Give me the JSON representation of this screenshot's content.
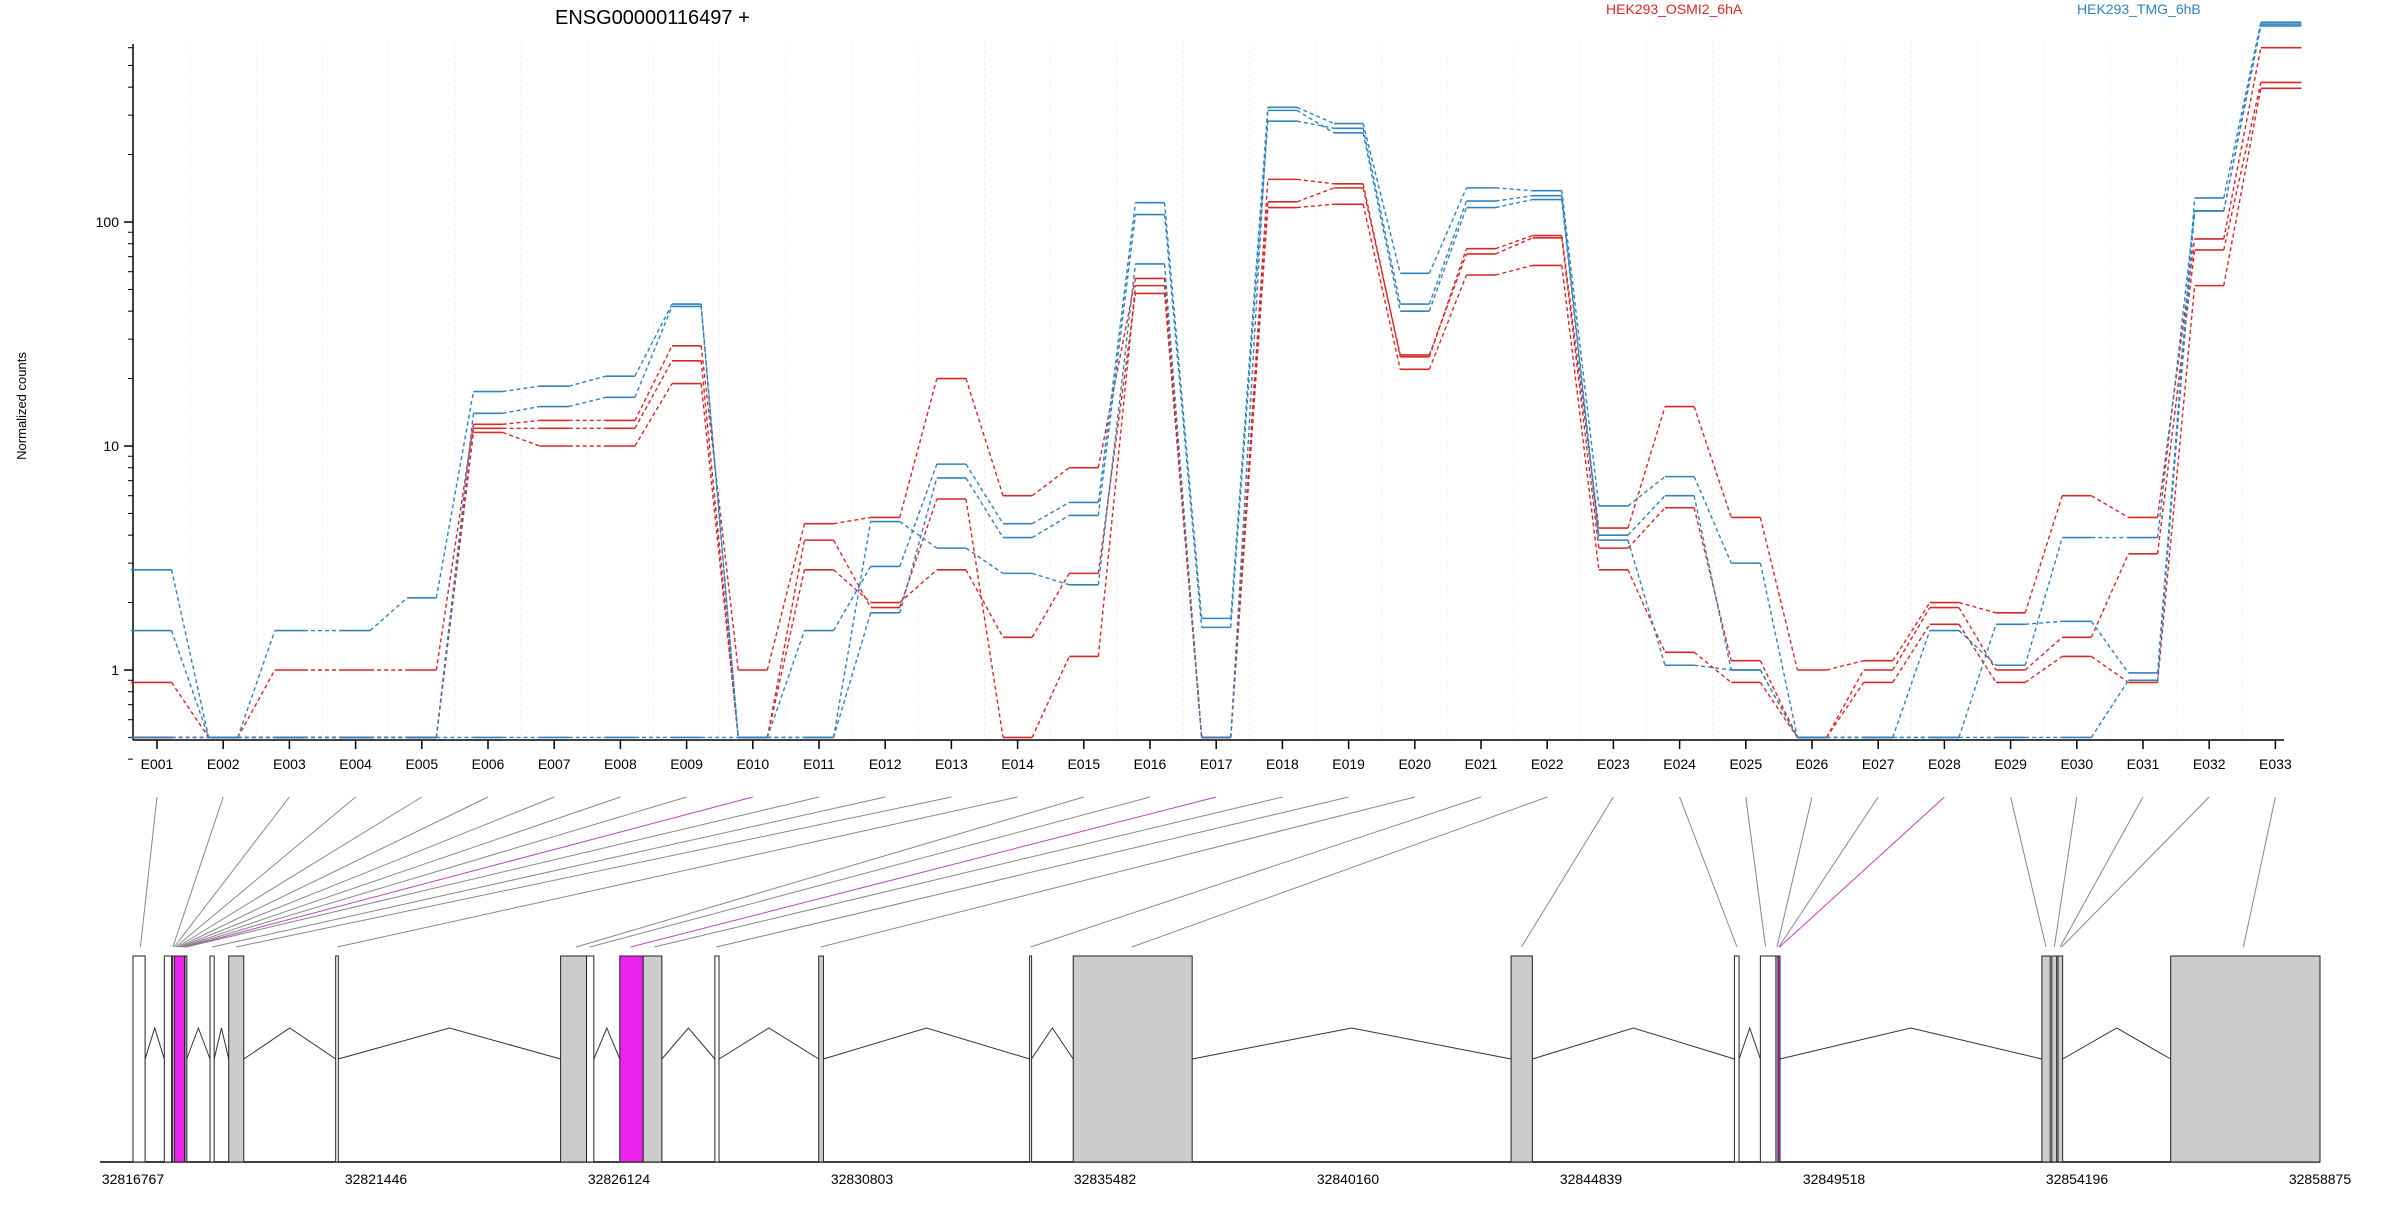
{
  "title": "ENSG00000116497 +",
  "ylabel": "Normalized counts",
  "colors": {
    "red": "#d62728",
    "blue": "#3182bd",
    "exon_fill": "#cccccc",
    "highlight": "#ee22ee",
    "grid": "#eeeeee",
    "axis": "#000000"
  },
  "legend": [
    {
      "name": "HEK293_OSMI2_6hA",
      "color": "#d62728"
    },
    {
      "name": "HEK293_TMG_6hB",
      "color": "#3182bd"
    }
  ],
  "chart_data": {
    "type": "line",
    "y_scale": "log",
    "y_ticks": [
      1,
      10,
      100
    ],
    "y_tick_labels": [
      "1",
      "10",
      "100"
    ],
    "ylim": [
      0.38,
      1000
    ],
    "categories": [
      "E001",
      "E002",
      "E003",
      "E004",
      "E005",
      "E006",
      "E007",
      "E008",
      "E009",
      "E010",
      "E011",
      "E012",
      "E013",
      "E014",
      "E015",
      "E016",
      "E017",
      "E018",
      "E019",
      "E020",
      "E021",
      "E022",
      "E023",
      "E024",
      "E025",
      "E026",
      "E027",
      "E028",
      "E029",
      "E030",
      "E031",
      "E032",
      "E033"
    ],
    "series": [
      {
        "group": "red",
        "values": [
          0.88,
          0.5,
          1.0,
          1.0,
          1.0,
          12.5,
          13.0,
          13.0,
          28,
          1.0,
          4.5,
          4.8,
          20,
          6.0,
          8.0,
          56,
          0.5,
          155,
          148,
          25.0,
          76,
          87,
          4.3,
          15.0,
          4.8,
          1.0,
          1.1,
          2.0,
          1.8,
          6.0,
          4.8,
          84,
          600
        ]
      },
      {
        "group": "red",
        "values": [
          0.5,
          0.5,
          0.5,
          0.5,
          0.5,
          11.5,
          10.0,
          10.0,
          19,
          0.5,
          2.8,
          2.0,
          2.8,
          1.4,
          2.7,
          48,
          0.5,
          116,
          120,
          22.0,
          58,
          64,
          2.8,
          1.2,
          0.88,
          0.5,
          0.88,
          1.6,
          0.88,
          1.15,
          0.88,
          52,
          395
        ]
      },
      {
        "group": "red",
        "values": [
          0.5,
          0.5,
          0.5,
          0.5,
          0.5,
          12.0,
          12.0,
          12.0,
          24,
          0.5,
          3.8,
          1.9,
          5.8,
          0.5,
          1.15,
          52,
          0.5,
          123,
          142,
          25.5,
          72,
          85,
          3.5,
          5.3,
          1.1,
          0.5,
          1.0,
          1.9,
          1.0,
          1.4,
          3.3,
          75,
          420
        ]
      },
      {
        "group": "blue",
        "values": [
          2.8,
          0.5,
          1.5,
          1.5,
          2.1,
          17.5,
          18.5,
          20.5,
          43,
          0.5,
          1.5,
          2.9,
          8.3,
          4.5,
          5.6,
          122,
          1.7,
          325,
          275,
          59,
          142,
          138,
          5.4,
          7.3,
          3.0,
          0.5,
          0.5,
          0.5,
          1.6,
          1.65,
          0.97,
          128,
          780
        ]
      },
      {
        "group": "blue",
        "values": [
          1.5,
          0.5,
          0.5,
          0.5,
          0.5,
          14.0,
          15.0,
          16.5,
          42,
          0.5,
          0.5,
          1.8,
          7.2,
          3.9,
          4.9,
          108,
          1.55,
          282,
          262,
          43,
          124,
          131,
          4.0,
          6.0,
          1.0,
          0.5,
          0.5,
          1.5,
          1.05,
          3.9,
          3.9,
          112,
          750
        ]
      },
      {
        "group": "blue",
        "values": [
          0.5,
          0.5,
          0.5,
          0.5,
          0.5,
          0.5,
          0.5,
          0.5,
          0.5,
          0.5,
          0.5,
          4.6,
          3.5,
          2.7,
          2.4,
          65,
          0.5,
          315,
          250,
          40,
          116,
          126,
          3.8,
          1.05,
          1.0,
          0.5,
          0.5,
          0.5,
          0.5,
          0.5,
          0.9,
          112,
          765
        ]
      }
    ],
    "gene_axis_ticks": [
      "32816767",
      "32821446",
      "32826124",
      "32830803",
      "32835482",
      "32840160",
      "32844839",
      "32849518",
      "32854196",
      "32858875"
    ],
    "genomic_range": [
      32816767,
      32858875
    ],
    "exons": [
      {
        "start": 32816767,
        "end": 32817000,
        "fill": "white"
      },
      {
        "start": 32817370,
        "end": 32817510,
        "fill": "white"
      },
      {
        "start": 32817525,
        "end": 32817560,
        "fill": "gray"
      },
      {
        "start": 32817565,
        "end": 32817760,
        "fill": "magenta"
      },
      {
        "start": 32817765,
        "end": 32817800,
        "fill": "gray"
      },
      {
        "start": 32818250,
        "end": 32818330,
        "fill": "white"
      },
      {
        "start": 32818610,
        "end": 32818900,
        "fill": "gray"
      },
      {
        "start": 32820670,
        "end": 32820720,
        "fill": "white"
      },
      {
        "start": 32825000,
        "end": 32825500,
        "fill": "gray"
      },
      {
        "start": 32825500,
        "end": 32825640,
        "fill": "white"
      },
      {
        "start": 32826140,
        "end": 32826590,
        "fill": "magenta"
      },
      {
        "start": 32826590,
        "end": 32826950,
        "fill": "gray"
      },
      {
        "start": 32827970,
        "end": 32828050,
        "fill": "white"
      },
      {
        "start": 32829970,
        "end": 32830060,
        "fill": "gray"
      },
      {
        "start": 32834030,
        "end": 32834065,
        "fill": "white"
      },
      {
        "start": 32834870,
        "end": 32837160,
        "fill": "gray"
      },
      {
        "start": 32843300,
        "end": 32843710,
        "fill": "gray"
      },
      {
        "start": 32847600,
        "end": 32847690,
        "fill": "white"
      },
      {
        "start": 32848100,
        "end": 32848400,
        "fill": "white"
      },
      {
        "start": 32848400,
        "end": 32848440,
        "fill": "gray"
      },
      {
        "start": 32848440,
        "end": 32848475,
        "fill": "magenta"
      },
      {
        "start": 32853520,
        "end": 32853680,
        "fill": "gray"
      },
      {
        "start": 32853710,
        "end": 32853805,
        "fill": "gray"
      },
      {
        "start": 32853830,
        "end": 32853920,
        "fill": "gray"
      },
      {
        "start": 32856000,
        "end": 32858875,
        "fill": "gray"
      }
    ],
    "exon_links": [
      {
        "pos": 32816910,
        "color": "gray"
      },
      {
        "pos": 32817535,
        "color": "gray"
      },
      {
        "pos": 32817560,
        "color": "gray"
      },
      {
        "pos": 32817590,
        "color": "gray"
      },
      {
        "pos": 32817620,
        "color": "gray"
      },
      {
        "pos": 32817650,
        "color": "gray"
      },
      {
        "pos": 32817680,
        "color": "gray"
      },
      {
        "pos": 32817710,
        "color": "gray"
      },
      {
        "pos": 32817740,
        "color": "gray"
      },
      {
        "pos": 32817770,
        "color": "magenta"
      },
      {
        "pos": 32817790,
        "color": "gray"
      },
      {
        "pos": 32818290,
        "color": "gray"
      },
      {
        "pos": 32818750,
        "color": "gray"
      },
      {
        "pos": 32820700,
        "color": "gray"
      },
      {
        "pos": 32825300,
        "color": "gray"
      },
      {
        "pos": 32825560,
        "color": "gray"
      },
      {
        "pos": 32826350,
        "color": "magenta"
      },
      {
        "pos": 32826800,
        "color": "gray"
      },
      {
        "pos": 32828000,
        "color": "gray"
      },
      {
        "pos": 32830010,
        "color": "gray"
      },
      {
        "pos": 32834050,
        "color": "gray"
      },
      {
        "pos": 32836000,
        "color": "gray"
      },
      {
        "pos": 32843500,
        "color": "gray"
      },
      {
        "pos": 32847650,
        "color": "gray"
      },
      {
        "pos": 32848200,
        "color": "gray"
      },
      {
        "pos": 32848420,
        "color": "gray"
      },
      {
        "pos": 32848455,
        "color": "gray"
      },
      {
        "pos": 32848470,
        "color": "magenta"
      },
      {
        "pos": 32853600,
        "color": "gray"
      },
      {
        "pos": 32853760,
        "color": "gray"
      },
      {
        "pos": 32853870,
        "color": "gray"
      },
      {
        "pos": 32853900,
        "color": "gray"
      },
      {
        "pos": 32857400,
        "color": "gray"
      }
    ]
  }
}
